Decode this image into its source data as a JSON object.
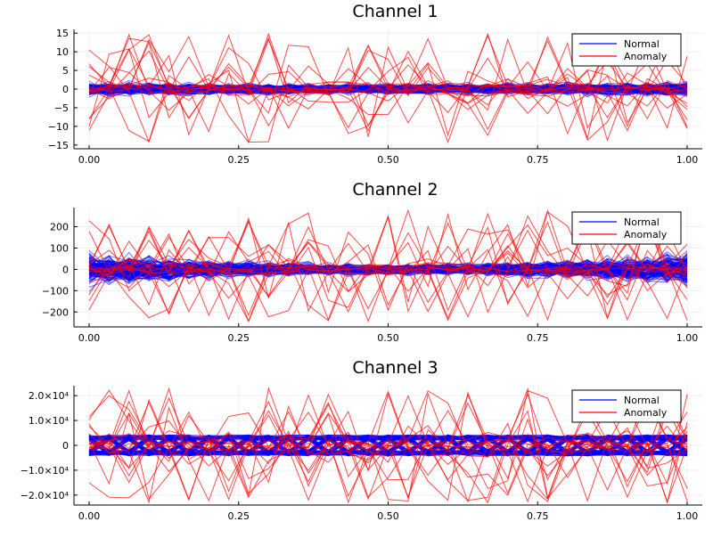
{
  "chart_data": [
    {
      "type": "line",
      "title": "Channel 1",
      "xlim": [
        0,
        1
      ],
      "ylim": [
        -16,
        16
      ],
      "x_ticks": [
        0,
        0.25,
        0.5,
        0.75,
        1
      ],
      "x_tick_labels": [
        "0.00",
        "0.25",
        "0.50",
        "0.75",
        "1.00"
      ],
      "y_ticks": [
        -15,
        -10,
        -5,
        0,
        5,
        10,
        15
      ],
      "y_tick_labels": [
        "−15",
        "−10",
        "−5",
        "0",
        "5",
        "10",
        "15"
      ],
      "grid": true,
      "legend": {
        "position": "top-right",
        "entries": [
          {
            "name": "Normal",
            "color": "#0000ff"
          },
          {
            "name": "Anomaly",
            "color": "#ff0000"
          }
        ]
      },
      "series": [
        {
          "name": "Normal",
          "color": "#0000ff",
          "band": {
            "edge_amplitude": 3,
            "center_amplitude": 2.2
          }
        },
        {
          "name": "Anomaly",
          "color": "#ff0000",
          "amplitude_range": [
            -15,
            15
          ]
        }
      ]
    },
    {
      "type": "line",
      "title": "Channel 2",
      "xlim": [
        0,
        1
      ],
      "ylim": [
        -270,
        290
      ],
      "x_ticks": [
        0,
        0.25,
        0.5,
        0.75,
        1
      ],
      "x_tick_labels": [
        "0.00",
        "0.25",
        "0.50",
        "0.75",
        "1.00"
      ],
      "y_ticks": [
        -200,
        -100,
        0,
        100,
        200
      ],
      "y_tick_labels": [
        "−200",
        "−100",
        "0",
        "100",
        "200"
      ],
      "grid": true,
      "legend": {
        "position": "top-right",
        "entries": [
          {
            "name": "Normal",
            "color": "#0000ff"
          },
          {
            "name": "Anomaly",
            "color": "#ff0000"
          }
        ]
      },
      "series": [
        {
          "name": "Normal",
          "color": "#0000ff",
          "band": {
            "edge_amplitude": 120,
            "center_amplitude": 40
          }
        },
        {
          "name": "Anomaly",
          "color": "#ff0000",
          "amplitude_range": [
            -250,
            280
          ]
        }
      ]
    },
    {
      "type": "line",
      "title": "Channel 3",
      "xlim": [
        0,
        1
      ],
      "ylim": [
        -24000,
        24000
      ],
      "x_ticks": [
        0,
        0.25,
        0.5,
        0.75,
        1
      ],
      "x_tick_labels": [
        "0.00",
        "0.25",
        "0.50",
        "0.75",
        "1.00"
      ],
      "y_ticks": [
        -20000,
        -10000,
        0,
        10000,
        20000
      ],
      "y_tick_labels": [
        "−2.0×10⁴",
        "−1.0×10⁴",
        "0",
        "1.0×10⁴",
        "2.0×10⁴"
      ],
      "grid": true,
      "legend": {
        "position": "top-right",
        "entries": [
          {
            "name": "Normal",
            "color": "#0000ff"
          },
          {
            "name": "Anomaly",
            "color": "#ff0000"
          }
        ]
      },
      "series": [
        {
          "name": "Normal",
          "color": "#0000ff",
          "band": {
            "edge_amplitude": 5000,
            "center_amplitude": 5000
          }
        },
        {
          "name": "Anomaly",
          "color": "#ff0000",
          "amplitude_range": [
            -23000,
            23000
          ]
        }
      ]
    }
  ]
}
